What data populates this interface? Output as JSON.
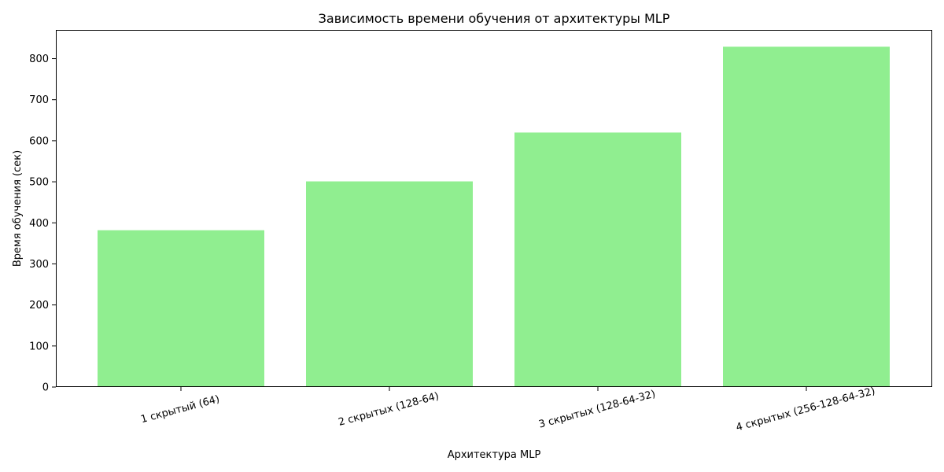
{
  "chart_data": {
    "type": "bar",
    "title": "Зависимость времени обучения от архитектуры MLP",
    "xlabel": "Архитектура MLP",
    "ylabel": "Время обучения (сек)",
    "categories": [
      "1 скрытый (64)",
      "2 скрытых (128-64)",
      "3 скрытых (128-64-32)",
      "4 скрытых (256-128-64-32)"
    ],
    "values": [
      382,
      501,
      620,
      829
    ],
    "ylim": [
      0,
      870
    ],
    "yticks": [
      0,
      100,
      200,
      300,
      400,
      500,
      600,
      700,
      800
    ],
    "bar_color": "#90ee90",
    "grid": false,
    "legend": "none"
  }
}
